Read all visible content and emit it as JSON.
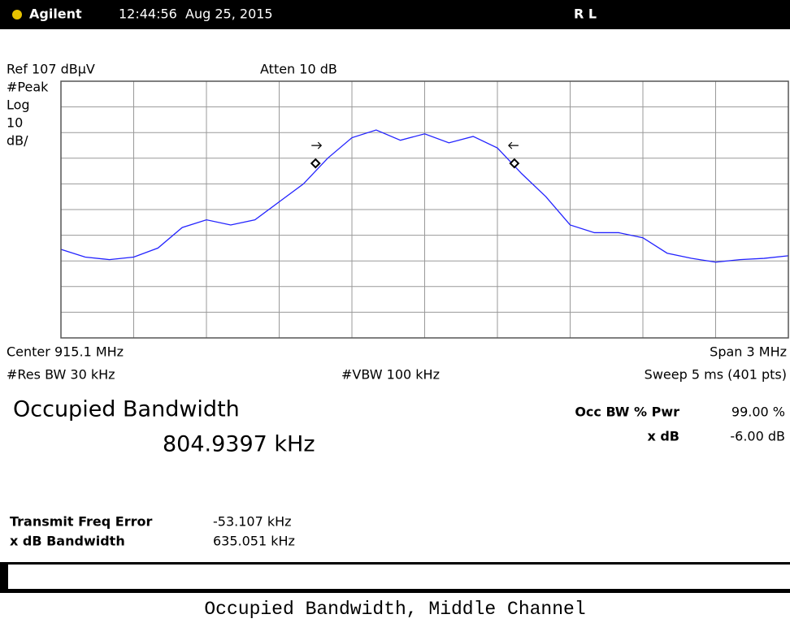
{
  "header": {
    "brand": "Agilent",
    "datetime": "12:44:56  Aug 25, 2015",
    "mode": "R L"
  },
  "chart_data": {
    "type": "line",
    "annotations": {
      "ref": "Ref 107 dBμV",
      "atten": "Atten 10 dB",
      "detector": "#Peak",
      "scale": "Log",
      "div": "10",
      "div_unit": "dB/",
      "center": "Center 915.1 MHz",
      "span": "Span 3 MHz",
      "rbw": "#Res BW 30 kHz",
      "vbw": "#VBW 100 kHz",
      "sweep": "Sweep 5 ms (401 pts)"
    },
    "xlim": [
      913.6,
      916.6
    ],
    "ylim": [
      7,
      107
    ],
    "xticks": [
      913.9,
      914.2,
      914.5,
      914.8,
      915.1,
      915.4,
      915.7,
      916.0,
      916.3
    ],
    "yticks": [
      17,
      27,
      37,
      47,
      57,
      67,
      77,
      87,
      97
    ],
    "grid": true,
    "series": [
      {
        "color": "#2323ff",
        "x": [
          913.6,
          913.7,
          913.8,
          913.9,
          914.0,
          914.1,
          914.2,
          914.3,
          914.4,
          914.5,
          914.6,
          914.7,
          914.8,
          914.9,
          915.0,
          915.1,
          915.2,
          915.3,
          915.4,
          915.5,
          915.6,
          915.7,
          915.8,
          915.9,
          916.0,
          916.1,
          916.2,
          916.3,
          916.4,
          916.5,
          916.6
        ],
        "values": [
          41.5,
          38.5,
          37.5,
          38.5,
          42,
          50,
          53,
          51,
          53,
          60,
          67,
          77,
          85,
          88,
          84,
          86.5,
          83,
          85.5,
          81,
          71,
          62,
          51,
          48,
          48,
          46,
          40,
          38,
          36.5,
          37.5,
          38,
          39
        ]
      }
    ],
    "markers": {
      "x": [
        914.65,
        915.47
      ],
      "values": [
        75,
        75
      ]
    }
  },
  "results": {
    "title": "Occupied Bandwidth",
    "obw": "804.9397 kHz",
    "pwr_label": "Occ BW % Pwr",
    "pwr_value": "99.00 %",
    "xdb_label": "x dB",
    "xdb_value": "-6.00 dB",
    "tfe_label": "Transmit Freq Error",
    "tfe_value": "-53.107 kHz",
    "xbw_label": "x dB Bandwidth",
    "xbw_value": "635.051 kHz"
  },
  "caption": "Occupied Bandwidth, Middle Channel"
}
